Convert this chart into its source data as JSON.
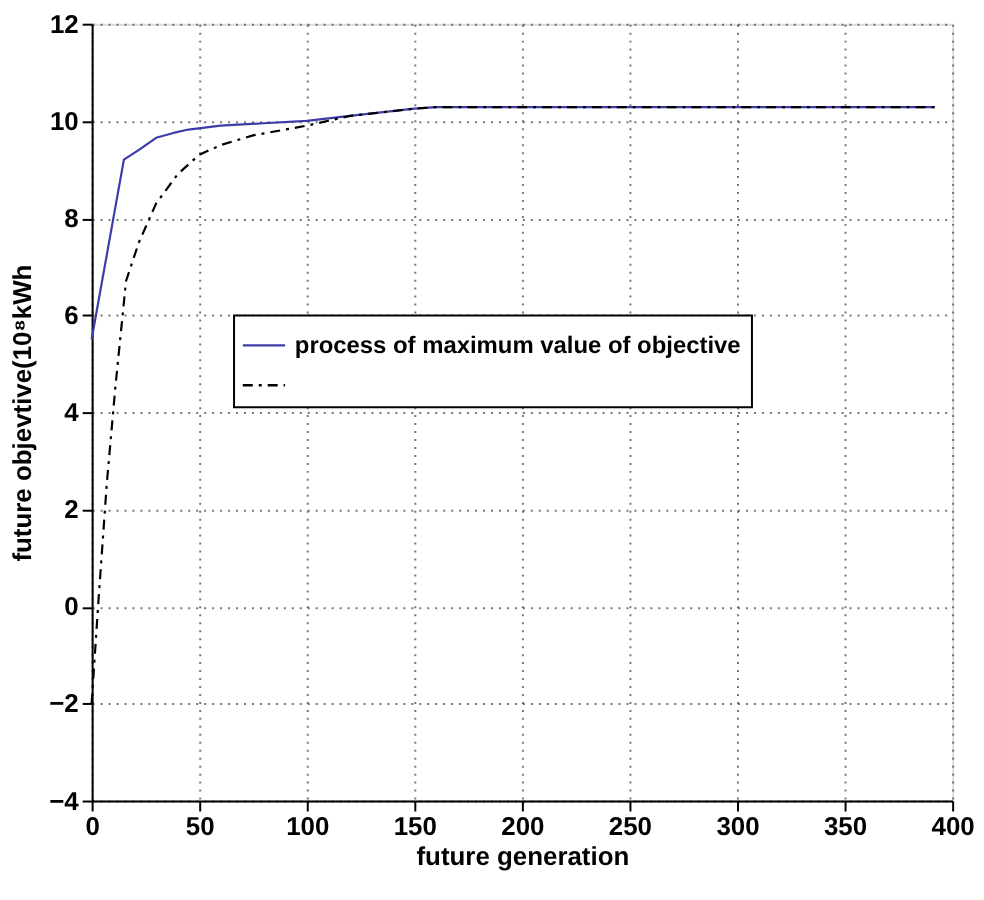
{
  "chart_data": {
    "type": "line",
    "xlabel": "future generation",
    "ylabel": "future objevtive(10⁸kWh",
    "xlim": [
      0,
      400
    ],
    "xticks": [
      0,
      50,
      100,
      150,
      200,
      250,
      300,
      350,
      400
    ],
    "ylim": [
      -4,
      12
    ],
    "yticks": [
      -4,
      -2,
      0,
      2,
      4,
      6,
      8,
      10,
      12
    ],
    "grid": true,
    "legend": "left",
    "marker": "none",
    "series": [
      {
        "name": "process of maximum value of objective",
        "color": "#3c3ca8",
        "line_style": "solid",
        "x": [
          0,
          15,
          22,
          30,
          38,
          45,
          60,
          80,
          100,
          120,
          150,
          160,
          200,
          392
        ],
        "values": [
          5.5,
          9.2,
          9.4,
          9.65,
          9.75,
          9.82,
          9.9,
          9.95,
          10.0,
          10.1,
          10.25,
          10.28,
          10.28,
          10.28
        ]
      },
      {
        "color": "#000000",
        "line_style": "dashed",
        "x": [
          0,
          3,
          7,
          11,
          16,
          22,
          30,
          40,
          50,
          60,
          75,
          100,
          110,
          120,
          150,
          160,
          200,
          392
        ],
        "values": [
          -2,
          0,
          2.5,
          4.5,
          6.7,
          7.5,
          8.3,
          8.9,
          9.3,
          9.5,
          9.7,
          9.9,
          10.0,
          10.1,
          10.25,
          10.28,
          10.28,
          10.28
        ]
      }
    ]
  }
}
